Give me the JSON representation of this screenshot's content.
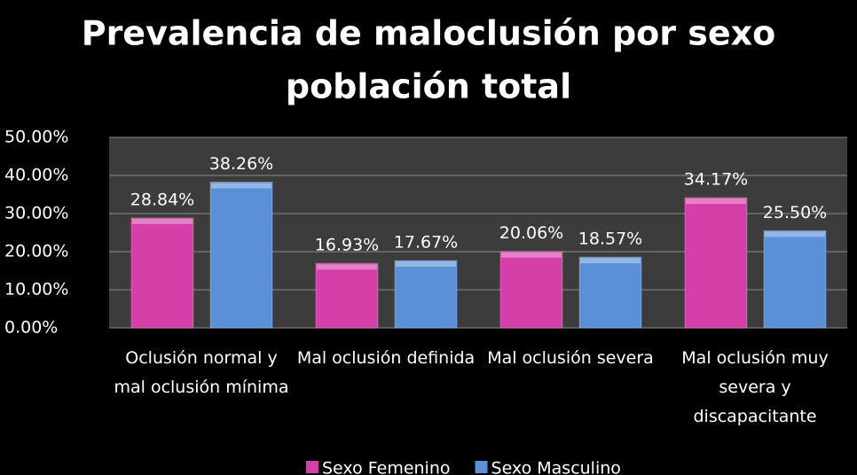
{
  "chart_data": {
    "type": "bar",
    "title": "Prevalencia de maloclusión por sexo",
    "subtitle": "población total",
    "categories": [
      "Oclusión normal y mal oclusión mínima",
      "Mal oclusión definida",
      "Mal oclusión severa",
      "Mal oclusión muy severa y discapacitante"
    ],
    "series": [
      {
        "name": "Sexo Femenino",
        "color": "#d63fa8",
        "values": [
          28.84,
          16.93,
          20.06,
          34.17
        ],
        "value_labels": [
          "28.84%",
          "16.93%",
          "20.06%",
          "34.17%"
        ]
      },
      {
        "name": "Sexo Masculino",
        "color": "#5b8fd8",
        "values": [
          38.26,
          17.67,
          18.57,
          25.5
        ],
        "value_labels": [
          "38.26%",
          "17.67%",
          "18.57%",
          "25.50%"
        ]
      }
    ],
    "ylim": [
      0,
      50
    ],
    "yticks": [
      {
        "value": 0,
        "label": "0.00%"
      },
      {
        "value": 10,
        "label": "10.00%"
      },
      {
        "value": 20,
        "label": "20.00%"
      },
      {
        "value": 30,
        "label": "30.00%"
      },
      {
        "value": 40,
        "label": "40.00%"
      },
      {
        "value": 50,
        "label": "50.00%"
      }
    ],
    "grid": true,
    "legend": "bottom"
  }
}
